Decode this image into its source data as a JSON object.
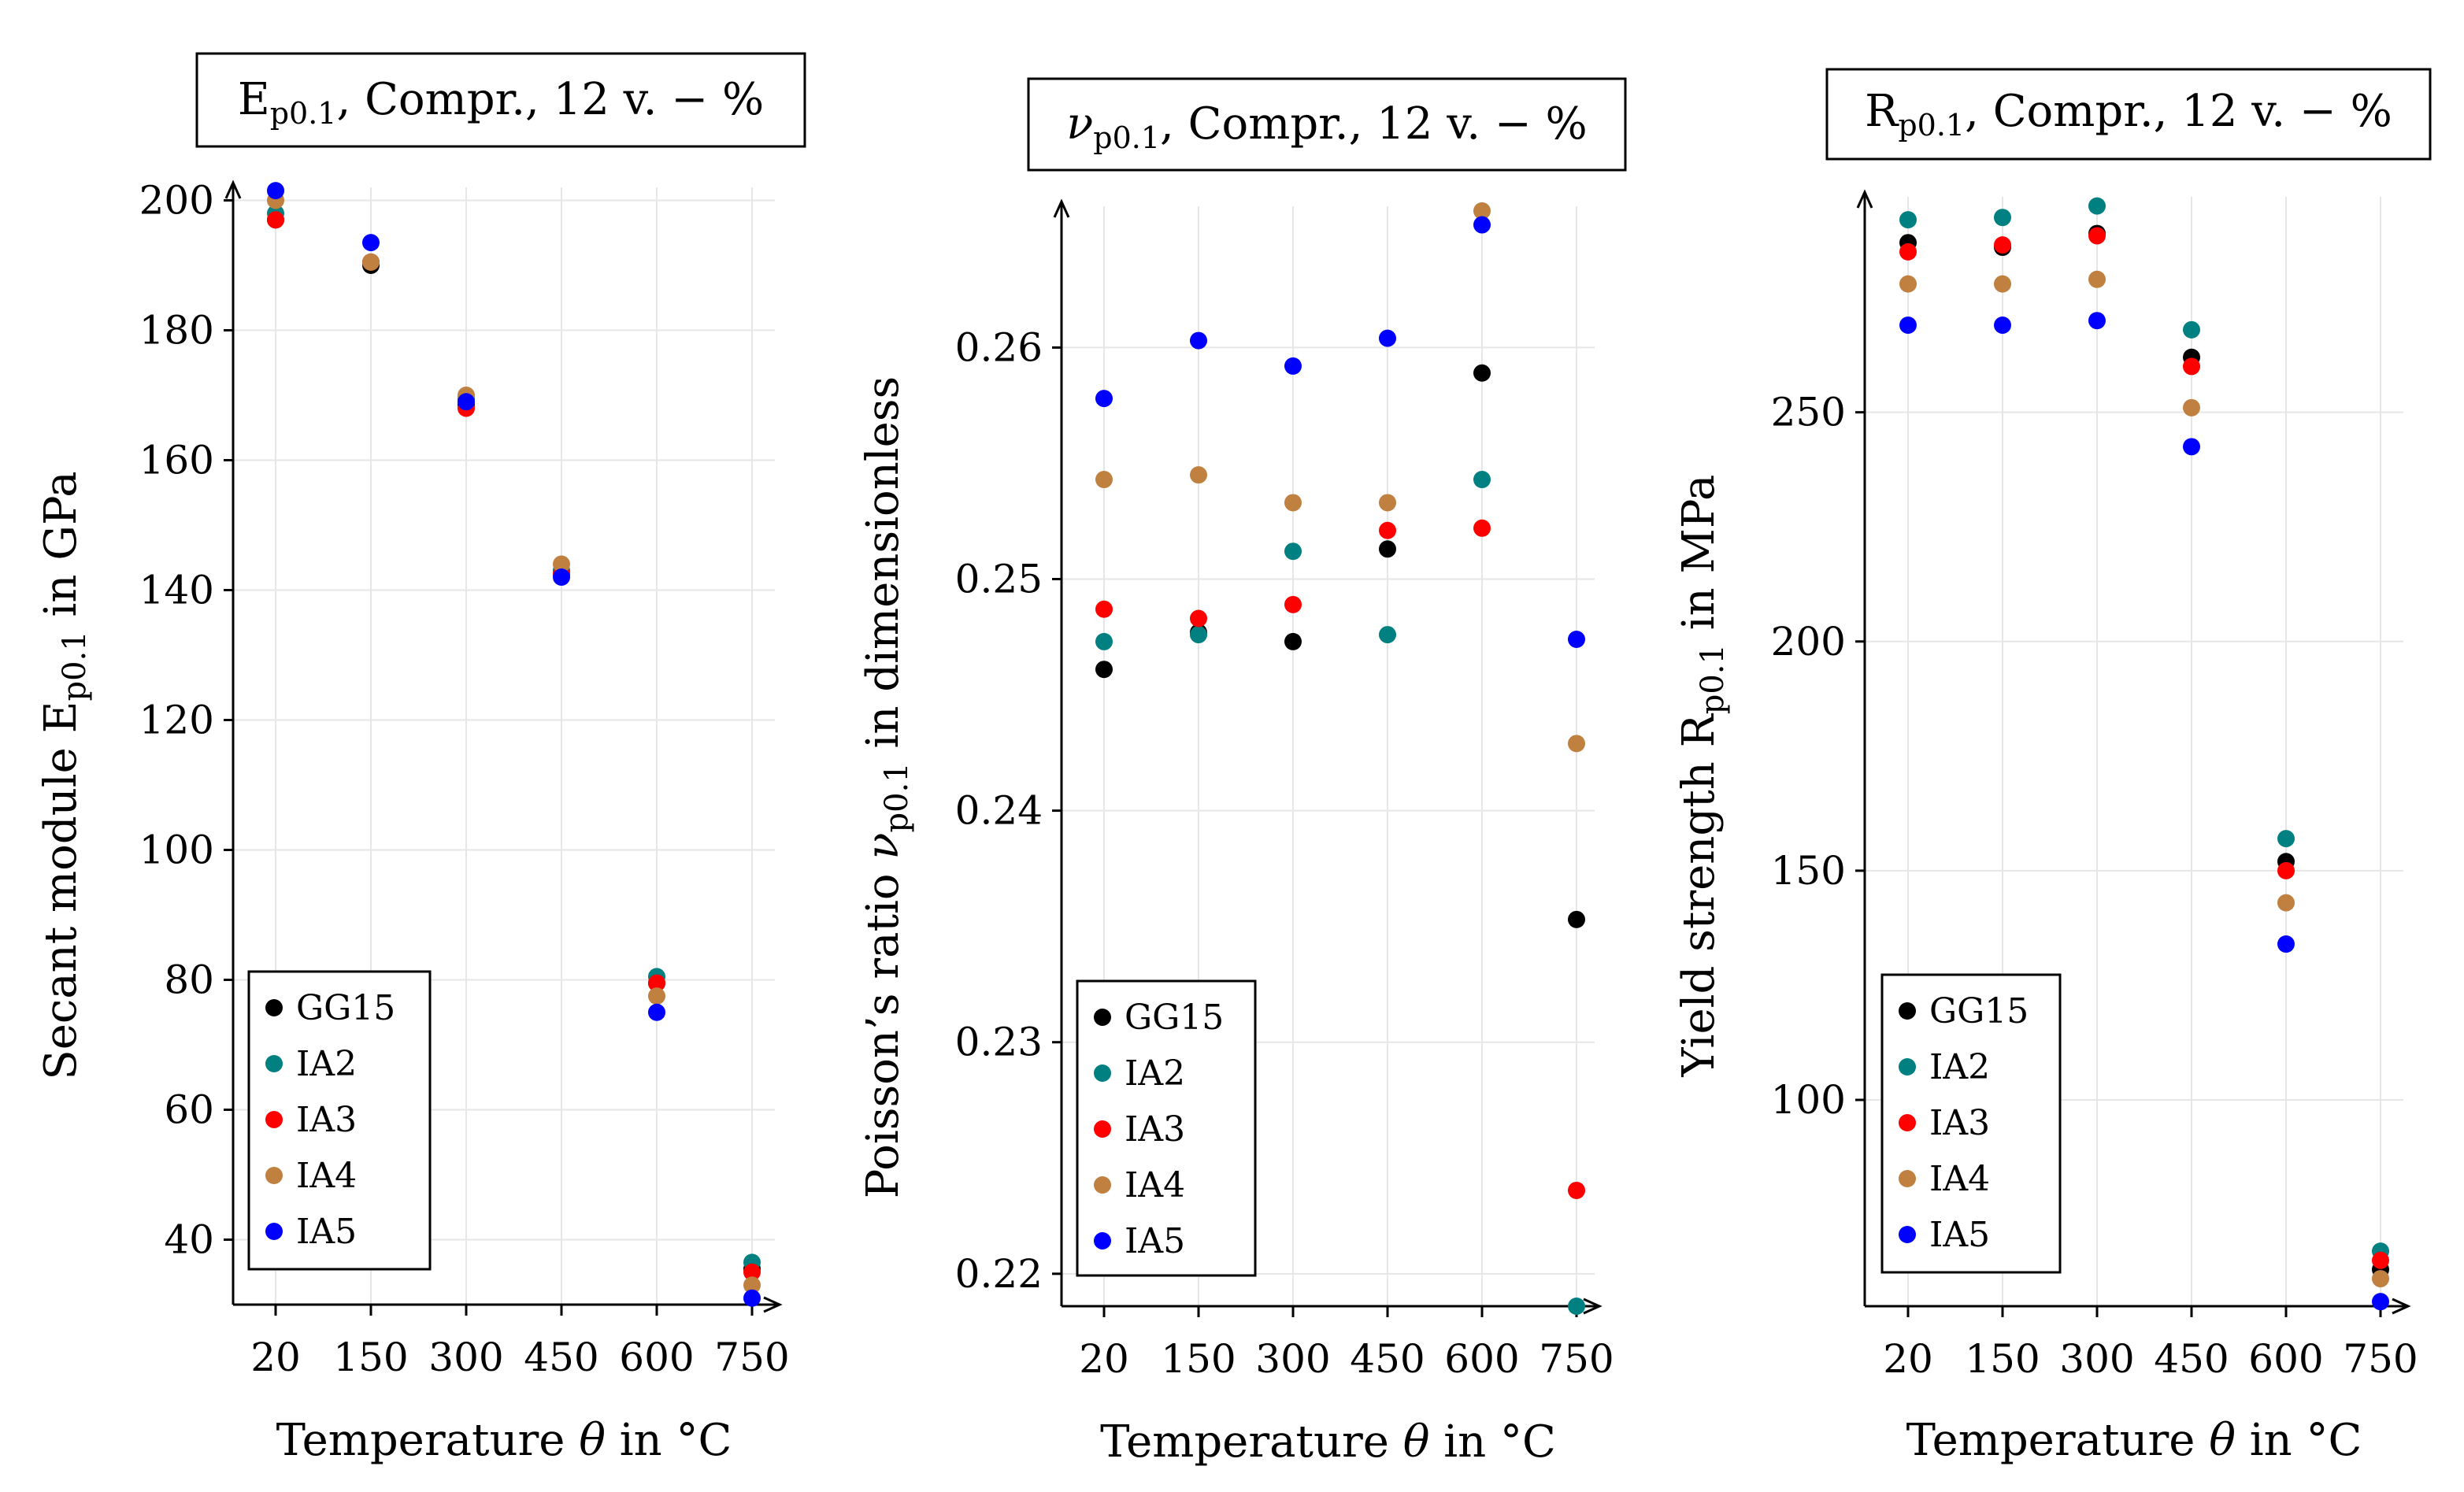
{
  "chart_data": [
    {
      "type": "scatter",
      "title": "E_{p0.1}, Compr., 12 v. − %",
      "title_parts": {
        "main": "E",
        "sub": "p0.1",
        "rest": ", Compr., 12 v. − %"
      },
      "xlabel_parts": {
        "pre": "Temperature ",
        "sym": "θ",
        "post": " in °C"
      },
      "ylabel_parts": {
        "pre": "Secant module E",
        "sub": "p0.1",
        "post": " in GPa"
      },
      "categories": [
        "20",
        "150",
        "300",
        "450",
        "600",
        "750"
      ],
      "ylim": [
        30,
        202
      ],
      "yticks": [
        40,
        60,
        80,
        100,
        120,
        140,
        160,
        180,
        200
      ],
      "grid": true,
      "legend_position": "bottom-left",
      "series": [
        {
          "name": "GG15",
          "color": "#000000",
          "values": [
            197,
            190,
            168.5,
            142.5,
            79.5,
            35.5
          ]
        },
        {
          "name": "IA2",
          "color": "#008080",
          "values": [
            198,
            190.5,
            169.5,
            143,
            80.5,
            36.5
          ]
        },
        {
          "name": "IA3",
          "color": "#ff0000",
          "values": [
            197,
            190.5,
            168,
            142.5,
            79.5,
            35
          ]
        },
        {
          "name": "IA4",
          "color": "#c08040",
          "values": [
            200,
            190.5,
            170,
            144,
            77.5,
            33
          ]
        },
        {
          "name": "IA5",
          "color": "#0000ff",
          "values": [
            201.5,
            193.5,
            169,
            142,
            75,
            31
          ]
        }
      ]
    },
    {
      "type": "scatter",
      "title": "ν_{p0.1}, Compr., 12 v. − %",
      "title_parts": {
        "main": "ν",
        "sub": "p0.1",
        "rest": ", Compr., 12 v. − %"
      },
      "xlabel_parts": {
        "pre": "Temperature ",
        "sym": "θ",
        "post": " in °C"
      },
      "ylabel_parts": {
        "pre": "Poisson’s ratio ν",
        "sub": "p0.1",
        "post": " in dimensionless"
      },
      "categories": [
        "20",
        "150",
        "300",
        "450",
        "600",
        "750"
      ],
      "ylim": [
        0.2186,
        0.2661
      ],
      "yticks": [
        "0.22",
        "0.23",
        "0.24",
        "0.25",
        "0.26"
      ],
      "ytick_values": [
        0.22,
        0.23,
        0.24,
        0.25,
        0.26
      ],
      "grid": true,
      "legend_position": "bottom-left",
      "series": [
        {
          "name": "GG15",
          "color": "#000000",
          "values": [
            0.2461,
            0.2477,
            0.2473,
            0.2513,
            0.2589,
            0.2353
          ]
        },
        {
          "name": "IA2",
          "color": "#008080",
          "values": [
            0.2473,
            0.2476,
            0.2512,
            0.2476,
            0.2543,
            0.2186
          ]
        },
        {
          "name": "IA3",
          "color": "#ff0000",
          "values": [
            0.2487,
            0.2483,
            0.2489,
            0.2521,
            0.2522,
            0.2236
          ]
        },
        {
          "name": "IA4",
          "color": "#c08040",
          "values": [
            0.2543,
            0.2545,
            0.2533,
            0.2533,
            0.2659,
            0.2429
          ]
        },
        {
          "name": "IA5",
          "color": "#0000ff",
          "values": [
            0.2578,
            0.2603,
            0.2592,
            0.2604,
            0.2653,
            0.2474
          ]
        }
      ]
    },
    {
      "type": "scatter",
      "title": "R_{p0.1}, Compr., 12 v. − %",
      "title_parts": {
        "main": "R",
        "sub": "p0.1",
        "rest": ", Compr., 12 v. − %"
      },
      "xlabel_parts": {
        "pre": "Temperature ",
        "sym": "θ",
        "post": " in °C"
      },
      "ylabel_parts": {
        "pre": "Yield strength R",
        "sub": "p0.1",
        "post": " in MPa"
      },
      "categories": [
        "20",
        "150",
        "300",
        "450",
        "600",
        "750"
      ],
      "ylim": [
        55,
        297
      ],
      "yticks": [
        100,
        150,
        200,
        250
      ],
      "grid": true,
      "legend_position": "bottom-left",
      "series": [
        {
          "name": "GG15",
          "color": "#000000",
          "values": [
            287,
            286,
            289,
            262,
            152,
            63
          ]
        },
        {
          "name": "IA2",
          "color": "#008080",
          "values": [
            292,
            292.5,
            295,
            268,
            157,
            67
          ]
        },
        {
          "name": "IA3",
          "color": "#ff0000",
          "values": [
            285,
            286.5,
            288.5,
            260,
            150,
            65
          ]
        },
        {
          "name": "IA4",
          "color": "#c08040",
          "values": [
            278,
            278,
            279,
            251,
            143,
            61
          ]
        },
        {
          "name": "IA5",
          "color": "#0000ff",
          "values": [
            269,
            269,
            270,
            242.5,
            134,
            56
          ]
        }
      ]
    }
  ]
}
